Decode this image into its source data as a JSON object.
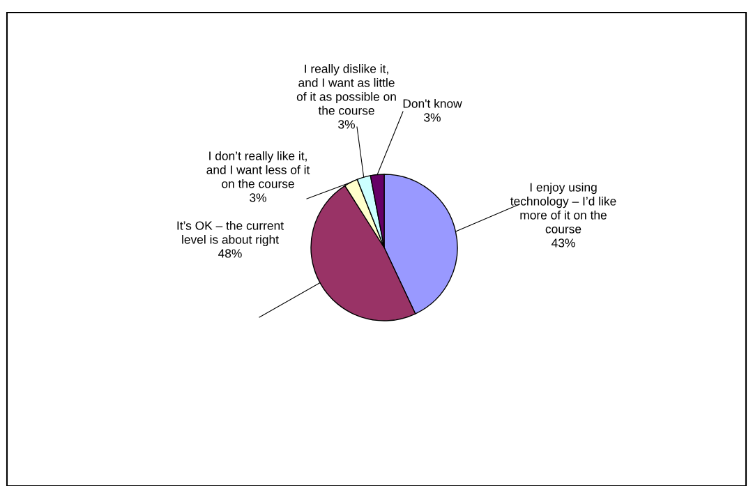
{
  "chart_data": {
    "type": "pie",
    "categories": [
      "I enjoy using\ntechnology – I’d like\nmore of it on the\ncourse",
      "It’s OK – the current\nlevel is about right",
      "I don’t really like it,\nand I want less of it\non the course",
      "I really dislike it,\nand I want as little\nof it as possible on\nthe course",
      "Don't know"
    ],
    "values": [
      43,
      48,
      3,
      3,
      3
    ],
    "colors": [
      "#9999ff",
      "#993366",
      "#ffffcc",
      "#ccffff",
      "#660066"
    ],
    "value_labels": [
      "43%",
      "48%",
      "3%",
      "3%",
      "3%"
    ]
  }
}
